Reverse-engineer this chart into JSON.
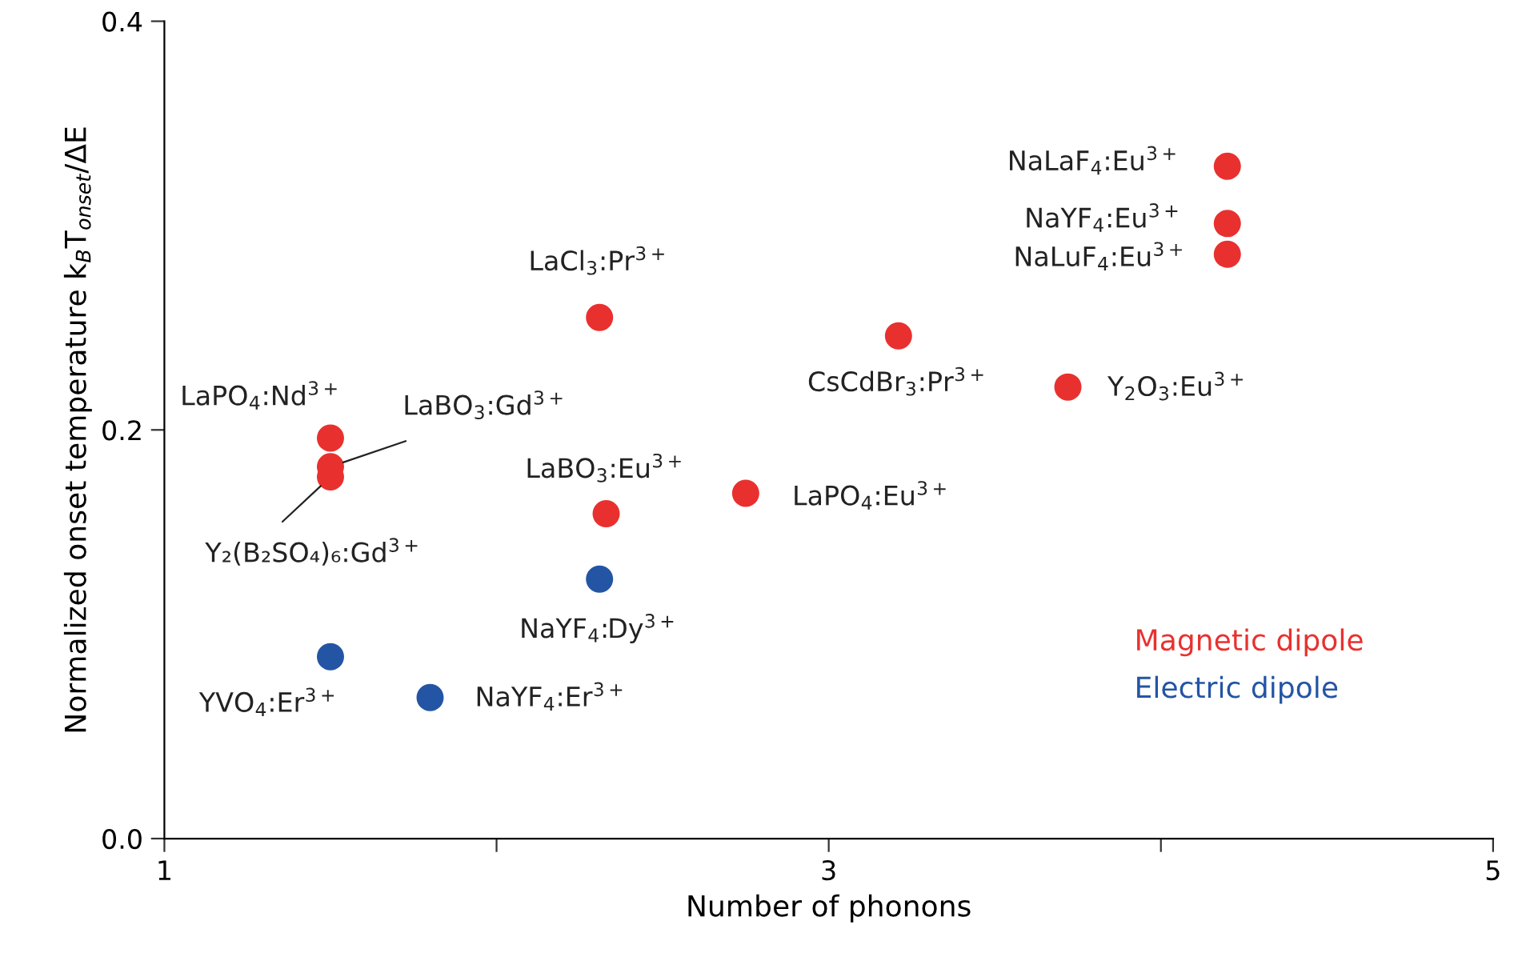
{
  "chart_data": {
    "type": "scatter",
    "xlabel": "Number of phonons",
    "ylabel": "Normalized onset temperature k$_{B}$T$_{onset}$/ΔE",
    "xlim": [
      1,
      5
    ],
    "xticks": [
      1,
      {
        "value": 2,
        "label": null
      },
      3,
      {
        "value": 4,
        "label": null
      },
      5
    ],
    "ylim": [
      0,
      0.4
    ],
    "yticks": [
      {
        "value": 0,
        "label": "0.0"
      },
      0.2,
      0.4
    ],
    "grid": false,
    "marker": "circle",
    "legend": "bottom right",
    "series": [
      {
        "name": "Magnetic dipole",
        "color": "#e8312f",
        "x": [
          1.5,
          1.5,
          1.5,
          2.31,
          2.33,
          2.75,
          3.21,
          3.72,
          4.2,
          4.2,
          4.2
        ],
        "values": [
          0.196,
          0.182,
          0.177,
          0.255,
          0.159,
          0.169,
          0.246,
          0.221,
          0.329,
          0.301,
          0.286
        ]
      },
      {
        "name": "Electric dipole",
        "color": "#2455a4",
        "x": [
          2.31,
          1.5,
          1.8
        ],
        "values": [
          0.127,
          0.089,
          0.069
        ]
      }
    ],
    "annotations": [
      {
        "text": "LaPO$_{4}$:Nd$^{3+}$",
        "x": 1.5,
        "y": 0.196
      },
      {
        "text": "LaBO$_{3}$:Gd$^{3+}$",
        "x": 1.5,
        "y": 0.182
      },
      {
        "text": "Y₂(B₂SO₄)₆:Gd$^{3+}$",
        "x": 1.5,
        "y": 0.177
      },
      {
        "text": "LaCl$_{3}$:Pr$^{3+}$",
        "x": 2.31,
        "y": 0.255
      },
      {
        "text": "LaBO$_{3}$:Eu$^{3+}$",
        "x": 2.33,
        "y": 0.159
      },
      {
        "text": "LaPO$_{4}$:Eu$^{3+}$",
        "x": 2.75,
        "y": 0.169
      },
      {
        "text": "CsCdBr$_{3}$:Pr$^{3+}$",
        "x": 3.21,
        "y": 0.246
      },
      {
        "text": "Y$_{2}$O$_{3}$:Eu$^{3+}$",
        "x": 3.72,
        "y": 0.221
      },
      {
        "text": "NaLaF$_{4}$:Eu$^{3+}$",
        "x": 4.2,
        "y": 0.329
      },
      {
        "text": "NaYF$_{4}$:Eu$^{3+}$",
        "x": 4.2,
        "y": 0.301
      },
      {
        "text": "NaLuF$_{4}$:Eu$^{3+}$",
        "x": 4.2,
        "y": 0.286
      },
      {
        "text": "NaYF$_{4}$:Dy$^{3+}$",
        "x": 2.31,
        "y": 0.127
      },
      {
        "text": "YVO$_{4}$:Er$^{3+}$",
        "x": 1.5,
        "y": 0.089
      },
      {
        "text": "NaYF$_{4}$:Er$^{3+}$",
        "x": 1.8,
        "y": 0.069
      }
    ]
  }
}
